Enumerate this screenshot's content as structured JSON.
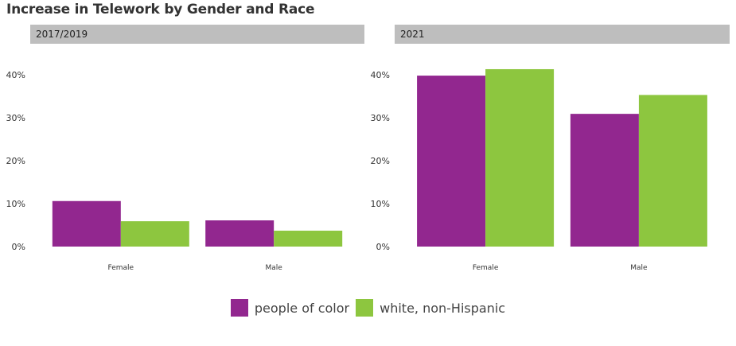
{
  "chart_data": {
    "type": "bar",
    "title": "Increase in Telework by Gender and Race",
    "categories": [
      "Female",
      "Male"
    ],
    "y_ticks": [
      "0%",
      "10%",
      "20%",
      "30%",
      "40%"
    ],
    "ylim": [
      0,
      40
    ],
    "legend": {
      "placement": "bottom",
      "entries": [
        {
          "name": "people of color",
          "color": "#92278F"
        },
        {
          "name": "white, non-Hispanic",
          "color": "#8DC63F"
        }
      ]
    },
    "panels": [
      {
        "label": "2017/2019",
        "series": [
          {
            "name": "people of color",
            "values": [
              10.6,
              6.1
            ]
          },
          {
            "name": "white, non-Hispanic",
            "values": [
              5.9,
              3.7
            ]
          }
        ]
      },
      {
        "label": "2021",
        "series": [
          {
            "name": "people of color",
            "values": [
              39.8,
              30.9
            ]
          },
          {
            "name": "white, non-Hispanic",
            "values": [
              41.3,
              35.3
            ]
          }
        ]
      }
    ]
  }
}
